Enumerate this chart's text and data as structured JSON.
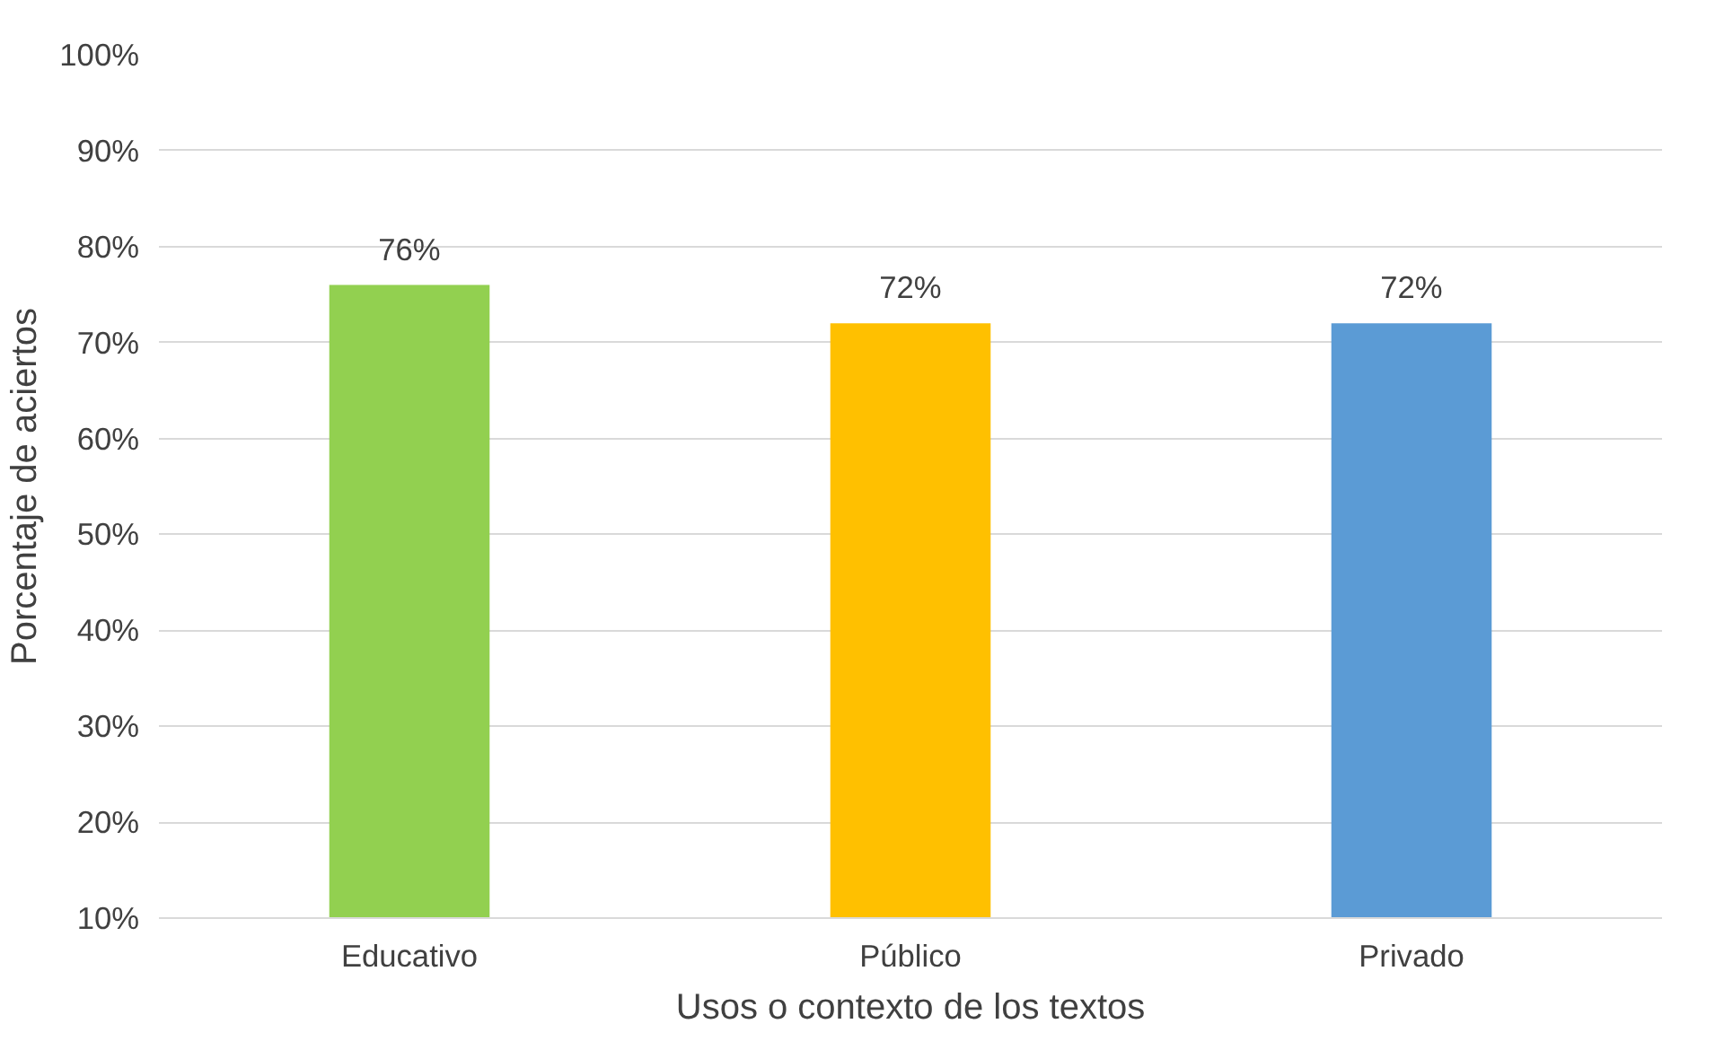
{
  "chart_data": {
    "type": "bar",
    "xlabel": "Usos o contexto de los textos",
    "ylabel": "Porcentaje de aciertos",
    "categories": [
      "Educativo",
      "Público",
      "Privado"
    ],
    "values": [
      76,
      72,
      72
    ],
    "colors": [
      "#92d050",
      "#ffc000",
      "#5b9bd5"
    ],
    "value_labels": [
      "76%",
      "72%",
      "72%"
    ],
    "ylim": [
      10,
      100
    ],
    "yticks": [
      {
        "value": 10,
        "label": "10%"
      },
      {
        "value": 20,
        "label": "20%"
      },
      {
        "value": 30,
        "label": "30%"
      },
      {
        "value": 40,
        "label": "40%"
      },
      {
        "value": 50,
        "label": "50%"
      },
      {
        "value": 60,
        "label": "60%"
      },
      {
        "value": 70,
        "label": "70%"
      },
      {
        "value": 80,
        "label": "80%"
      },
      {
        "value": 90,
        "label": "90%"
      },
      {
        "value": 100,
        "label": "100%"
      }
    ],
    "grid": "y"
  }
}
